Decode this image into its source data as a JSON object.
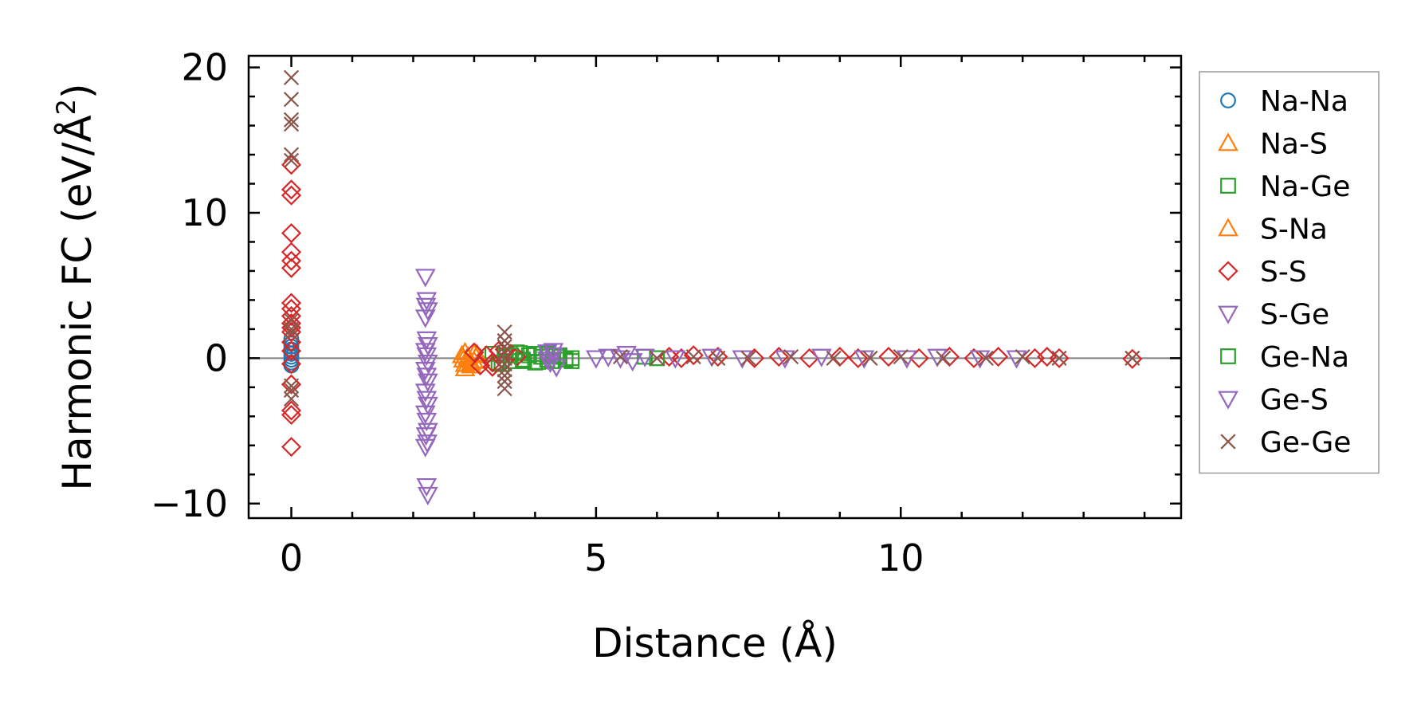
{
  "chart_data": {
    "type": "scatter",
    "title": "",
    "xlabel": "Distance (Å)",
    "ylabel": "Harmonic FC (eV/Å²)",
    "ylabel_main": "Harmonic FC (eV/Å",
    "ylabel_sup": "2",
    "ylabel_end": ")",
    "xlim": [
      -0.7,
      14.6
    ],
    "ylim": [
      -11,
      20.8
    ],
    "xticks": [
      0,
      5,
      10
    ],
    "xtick_labels": [
      "0",
      "5",
      "10"
    ],
    "yticks": [
      -10,
      0,
      10,
      20
    ],
    "ytick_labels": [
      "−10",
      "0",
      "10",
      "20"
    ],
    "x_minor_step": 1,
    "y_minor_step": 2,
    "grid": false,
    "legend_position": "outside-right",
    "zero_line": true,
    "series": [
      {
        "name": "Na-Na",
        "marker": "circle",
        "color": "#1f77b4",
        "x": [
          0,
          0,
          0,
          0,
          0,
          0,
          0,
          0,
          0
        ],
        "y": [
          1.3,
          1.0,
          0.6,
          0.3,
          0.1,
          -0.1,
          -0.3,
          -0.5,
          0.8
        ]
      },
      {
        "name": "Na-S",
        "marker": "triangle-up",
        "color": "#ff7f0e",
        "x": [
          2.8,
          2.85,
          2.9,
          2.95,
          3.0,
          2.85,
          2.9,
          3.0,
          3.05,
          2.82
        ],
        "y": [
          0.2,
          -0.4,
          0.1,
          -0.3,
          0.3,
          -0.7,
          0.0,
          -0.2,
          0.2,
          -0.1
        ]
      },
      {
        "name": "Na-Ge",
        "marker": "square",
        "color": "#2ca02c",
        "x": [
          3.3,
          3.4,
          3.5,
          3.6,
          3.7,
          3.8,
          3.9,
          4.0,
          4.1,
          4.2,
          4.3,
          4.4,
          4.5,
          4.6,
          3.45,
          3.75,
          4.05,
          4.35
        ],
        "y": [
          0.3,
          -0.3,
          0.2,
          -0.2,
          0.4,
          -0.1,
          0.2,
          -0.3,
          0.1,
          0.3,
          -0.2,
          0.1,
          -0.1,
          0.0,
          -0.4,
          0.35,
          -0.25,
          0.15
        ]
      },
      {
        "name": "S-Na",
        "marker": "triangle-up",
        "color": "#ff7f0e",
        "x": [
          2.85,
          2.95,
          3.05,
          3.1
        ],
        "y": [
          0.4,
          -0.5,
          0.25,
          -0.15
        ]
      },
      {
        "name": "S-S",
        "marker": "diamond",
        "color": "#d62728",
        "x": [
          0,
          0,
          0,
          0,
          0,
          0,
          0,
          0,
          0,
          0,
          0,
          0,
          0,
          0,
          0,
          0,
          0,
          0,
          0,
          0,
          3.0,
          3.1,
          3.2,
          3.3,
          3.4,
          3.5,
          3.6,
          3.7,
          3.3,
          3.5,
          6.2,
          6.4,
          6.6,
          7.0,
          7.6,
          8.0,
          8.5,
          9.0,
          9.3,
          9.8,
          10.3,
          10.8,
          11.2,
          11.6,
          12.2,
          12.4,
          12.6,
          13.8
        ],
        "y": [
          13.3,
          11.6,
          11.2,
          8.6,
          7.3,
          6.7,
          6.2,
          3.8,
          3.4,
          2.9,
          2.4,
          1.8,
          -1.8,
          -3.6,
          -3.9,
          -6.1,
          0.5,
          1.1,
          -0.4,
          2.1,
          0.4,
          -0.5,
          0.2,
          -0.3,
          0.5,
          -0.2,
          0.3,
          0.1,
          -0.6,
          0.6,
          0.1,
          0.0,
          0.2,
          0.1,
          0.0,
          0.1,
          0.0,
          0.1,
          0.0,
          0.1,
          0.0,
          0.1,
          0.0,
          0.1,
          0.0,
          0.1,
          0.0,
          -0.05
        ]
      },
      {
        "name": "S-Ge",
        "marker": "triangle-down",
        "color": "#9467bd",
        "x": [
          2.2,
          2.22,
          2.24,
          2.2,
          2.22,
          2.24,
          2.2,
          2.22,
          2.24,
          2.2,
          2.22,
          2.24,
          2.2,
          2.22,
          2.24,
          2.2,
          2.22,
          2.24,
          2.21,
          2.23,
          2.2,
          2.22,
          2.24,
          2.21
        ],
        "y": [
          5.6,
          4.0,
          3.3,
          2.8,
          1.3,
          0.9,
          0.5,
          0.2,
          -0.3,
          -0.8,
          -1.2,
          -1.6,
          -2.3,
          -2.8,
          -3.2,
          -3.8,
          -4.3,
          -5.0,
          -5.3,
          -5.8,
          -6.1,
          -8.8,
          -9.4,
          3.6
        ]
      },
      {
        "name": "Ge-Na",
        "marker": "square",
        "color": "#2ca02c",
        "x": [
          3.6,
          3.8,
          4.0,
          4.2,
          4.4,
          4.6,
          5.8,
          6.0
        ],
        "y": [
          0.2,
          -0.2,
          0.3,
          -0.1,
          0.2,
          -0.2,
          0.1,
          0.0
        ]
      },
      {
        "name": "Ge-S",
        "marker": "triangle-down",
        "color": "#9467bd",
        "x": [
          4.2,
          4.25,
          4.3,
          4.35,
          4.2,
          4.3,
          5.0,
          5.2,
          5.4,
          5.5,
          5.6,
          5.8,
          6.3,
          6.9,
          7.4,
          8.1,
          8.7,
          9.4,
          10.1,
          10.6,
          11.3,
          11.9
        ],
        "y": [
          0.4,
          -0.3,
          0.5,
          -0.6,
          -0.1,
          0.2,
          0.0,
          0.1,
          0.0,
          0.3,
          -0.2,
          0.1,
          0.0,
          0.1,
          0.0,
          0.0,
          0.1,
          0.0,
          0.0,
          0.1,
          0.0,
          0.0
        ]
      },
      {
        "name": "Ge-Ge",
        "marker": "x",
        "color": "#8c564b",
        "x": [
          0,
          0,
          0,
          0,
          0,
          0,
          0,
          0,
          0,
          0,
          0,
          0,
          3.5,
          3.5,
          3.5,
          3.5,
          3.5,
          3.5,
          3.5,
          3.5,
          3.5,
          3.5,
          5.4,
          6.0,
          6.6,
          7.0,
          7.5,
          8.2,
          8.9,
          9.5,
          10.0,
          10.7,
          11.4,
          12.0,
          12.6,
          13.8
        ],
        "y": [
          19.3,
          17.8,
          16.4,
          16.1,
          14.0,
          13.6,
          2.6,
          2.0,
          1.7,
          -1.9,
          -2.2,
          -2.8,
          1.8,
          1.2,
          0.8,
          0.4,
          0.0,
          -0.4,
          -0.8,
          -1.2,
          -1.6,
          -2.1,
          0.1,
          0.0,
          0.1,
          0.0,
          0.0,
          0.1,
          0.0,
          0.0,
          0.1,
          0.0,
          0.0,
          0.1,
          0.0,
          0.0
        ]
      }
    ]
  }
}
